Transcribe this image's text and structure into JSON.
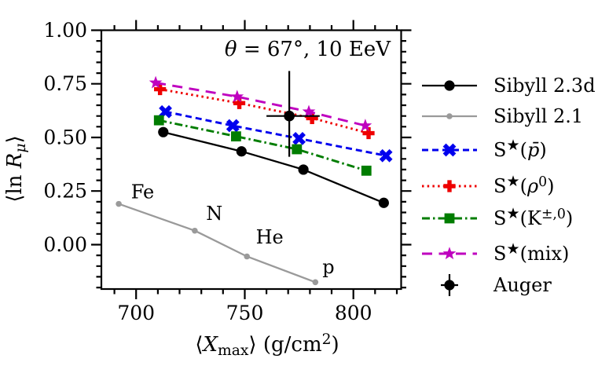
{
  "page": {
    "background": "#ffffff"
  },
  "chart_data": {
    "type": "line",
    "title": "θ = 67°, 10 EeV",
    "title_segments": [
      {
        "t": "θ",
        "it": true
      },
      {
        "t": " = 67°, 10 EeV"
      }
    ],
    "xlabel": "⟨X_max⟩ (g/cm²)",
    "xlabel_segments": [
      {
        "t": "⟨"
      },
      {
        "t": "X",
        "it": true
      },
      {
        "t": "max",
        "sub": true
      },
      {
        "t": "⟩ (g/cm"
      },
      {
        "t": "2",
        "sup": true
      },
      {
        "t": ")"
      }
    ],
    "ylabel": "⟨ln R_μ⟩",
    "ylabel_segments": [
      {
        "t": "⟨ln "
      },
      {
        "t": "R",
        "it": true
      },
      {
        "t": "μ",
        "it": true,
        "sub": true
      },
      {
        "t": "⟩"
      }
    ],
    "xlim": [
      684,
      822
    ],
    "ylim": [
      -0.207,
      1.0
    ],
    "x_major_ticks": {
      "values": [
        700,
        750,
        800
      ],
      "labels": [
        "700",
        "750",
        "800"
      ]
    },
    "x_minor_step": 10,
    "y_major_ticks": {
      "values": [
        0,
        0.25,
        0.5,
        0.75,
        1.0
      ],
      "labels": [
        "0.00",
        "0.25",
        "0.50",
        "0.75",
        "1.00"
      ]
    },
    "y_minor_step": 0.05,
    "grid": false,
    "legend_position": "right-outside",
    "axis_color": "#000000",
    "series": [
      {
        "name": "Sibyll 2.3d",
        "label_segments": [
          {
            "t": "Sibyll 2.3d"
          }
        ],
        "color": "#000000",
        "line": "solid",
        "marker": "circle",
        "x": [
          712.5,
          748.5,
          777,
          814
        ],
        "y": [
          0.525,
          0.435,
          0.35,
          0.195
        ]
      },
      {
        "name": "Sibyll 2.1",
        "label_segments": [
          {
            "t": "Sibyll 2.1"
          }
        ],
        "color": "#9a9a9a",
        "line": "solid",
        "marker": "circle-small",
        "x": [
          692,
          727,
          751,
          782.5
        ],
        "y": [
          0.19,
          0.065,
          -0.055,
          -0.175
        ]
      },
      {
        "name": "S★(p̄)",
        "label_segments": [
          {
            "t": "S"
          },
          {
            "t": "★",
            "sup": true
          },
          {
            "t": "("
          },
          {
            "t": "p̄",
            "it": true
          },
          {
            "t": ")"
          }
        ],
        "color": "#0000ee",
        "line": "dashed",
        "marker": "x-cross",
        "x": [
          713.5,
          744.5,
          775,
          815
        ],
        "y": [
          0.62,
          0.555,
          0.495,
          0.415
        ]
      },
      {
        "name": "S★(ρ0)",
        "label_segments": [
          {
            "t": "S"
          },
          {
            "t": "★",
            "sup": true
          },
          {
            "t": "("
          },
          {
            "t": "ρ",
            "it": true
          },
          {
            "t": "0",
            "sup": true
          },
          {
            "t": ")"
          }
        ],
        "color": "#ee0000",
        "line": "dotted",
        "marker": "plus",
        "x": [
          711,
          747.5,
          781,
          807
        ],
        "y": [
          0.725,
          0.66,
          0.59,
          0.52
        ]
      },
      {
        "name": "S★(K±,0)",
        "label_segments": [
          {
            "t": "S"
          },
          {
            "t": "★",
            "sup": true
          },
          {
            "t": "(K"
          },
          {
            "t": "±,0",
            "sup": true
          },
          {
            "t": ")"
          }
        ],
        "color": "#007d00",
        "line": "dashdot",
        "marker": "square",
        "x": [
          710.5,
          746,
          774,
          806
        ],
        "y": [
          0.58,
          0.505,
          0.445,
          0.345
        ]
      },
      {
        "name": "S★(mix)",
        "label_segments": [
          {
            "t": "S"
          },
          {
            "t": "★",
            "sup": true
          },
          {
            "t": "(mix)"
          }
        ],
        "color": "#bf00bf",
        "line": "longdash",
        "marker": "star",
        "x": [
          709,
          746.5,
          779.5,
          805.5
        ],
        "y": [
          0.755,
          0.69,
          0.62,
          0.555
        ]
      }
    ],
    "auger": {
      "name": "Auger",
      "label_segments": [
        {
          "t": "Auger"
        }
      ],
      "color": "#000000",
      "marker": "circle-errorbar",
      "x": 770.5,
      "y": 0.6,
      "x_err": [
        760,
        784.5
      ],
      "y_err": [
        0.41,
        0.81
      ]
    },
    "point_annotations": [
      {
        "text": "Fe",
        "x": 703,
        "y": 0.245
      },
      {
        "text": "N",
        "x": 736,
        "y": 0.145
      },
      {
        "text": "He",
        "x": 761.5,
        "y": 0.035
      },
      {
        "text": "p",
        "x": 788.5,
        "y": -0.105
      }
    ]
  }
}
